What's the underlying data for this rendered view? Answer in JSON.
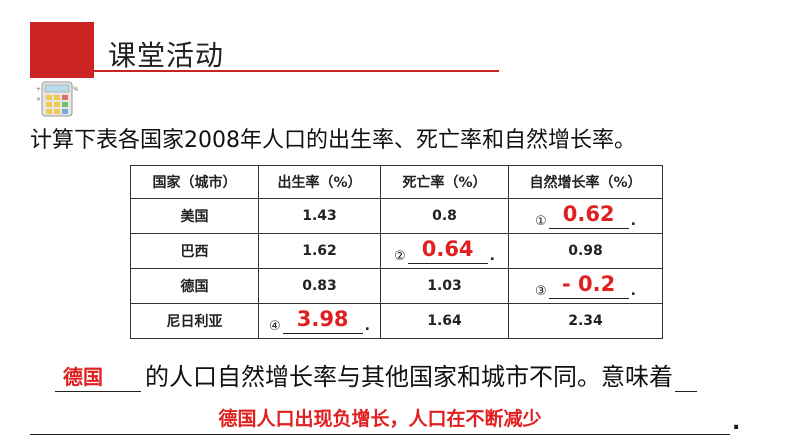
{
  "header": {
    "title": "课堂活动"
  },
  "instruction": "计算下表各国家2008年人口的出生率、死亡率和自然增长率。",
  "table": {
    "headers": [
      "国家（城市）",
      "出生率（%）",
      "死亡率（%）",
      "自然增长率（%）"
    ],
    "rows": [
      {
        "country": "美国",
        "birth": "1.43",
        "death": "0.8",
        "growth": {
          "marker": "①",
          "answer": "0.62"
        }
      },
      {
        "country": "巴西",
        "birth": "1.62",
        "death": {
          "marker": "②",
          "answer": "0.64"
        },
        "growth": "0.98"
      },
      {
        "country": "德国",
        "birth": "0.83",
        "death": "1.03",
        "growth": {
          "marker": "③",
          "answer": "- 0.2"
        }
      },
      {
        "country": "尼日利亚",
        "birth": {
          "marker": "④",
          "answer": "3.98"
        },
        "death": "1.64",
        "growth": "2.34"
      }
    ]
  },
  "question": {
    "blank1_answer": "德国",
    "text": "的人口自然增长率与其他国家和城市不同。意味着",
    "blank2_answer": "德国人口出现负增长，人口在不断减少",
    "end": "."
  },
  "colors": {
    "accent": "#cc2222",
    "answer": "#e02020"
  },
  "icons": {
    "calculator": "calculator-icon"
  }
}
